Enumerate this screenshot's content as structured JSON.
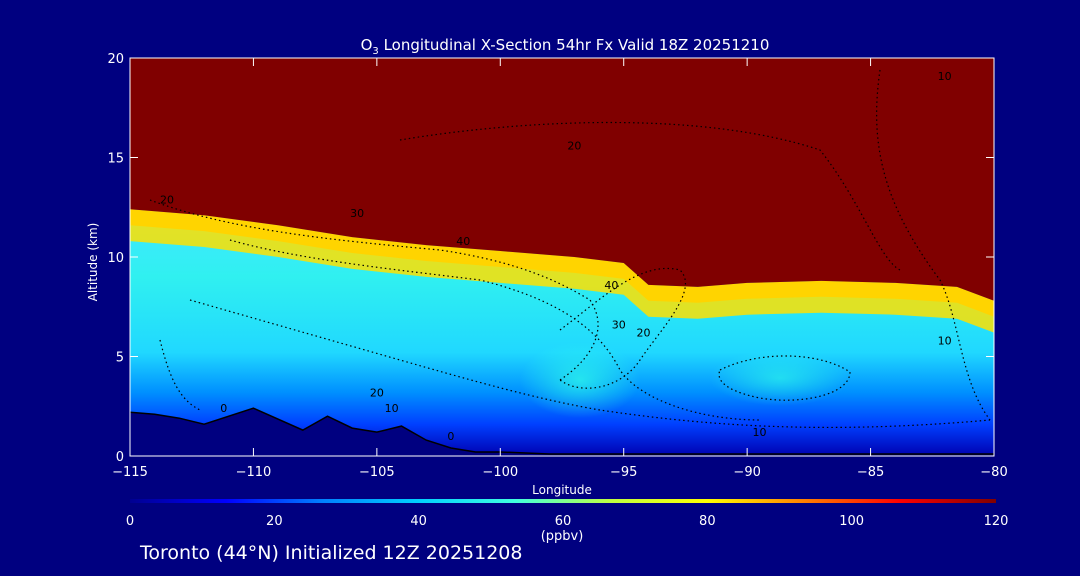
{
  "chart_data": {
    "type": "heatmap",
    "title_prefix": "O",
    "title_subscript": "3",
    "title_rest": " Longitudinal X-Section 54hr  Fx Valid 18Z 20251210",
    "xlabel": "Longitude",
    "ylabel": "Altitude (km)",
    "xlim": [
      -115,
      -80
    ],
    "ylim": [
      0,
      20
    ],
    "x_ticks": [
      -115,
      -110,
      -105,
      -100,
      -95,
      -90,
      -85,
      -80
    ],
    "x_tick_labels": [
      "−115",
      "−110",
      "−105",
      "−100",
      "−95",
      "−90",
      "−85",
      "−80"
    ],
    "y_ticks": [
      0,
      5,
      10,
      15,
      20
    ],
    "y_tick_labels": [
      "0",
      "5",
      "10",
      "15",
      "20"
    ],
    "colorbar": {
      "min": 0,
      "max": 120,
      "ticks": [
        0,
        20,
        40,
        60,
        80,
        100,
        120
      ],
      "tick_labels": [
        "0",
        "20",
        "40",
        "60",
        "80",
        "100",
        "120"
      ],
      "unit_label": "(ppbv)",
      "colors": [
        "#000090",
        "#0000ff",
        "#0080ff",
        "#00d0ff",
        "#40ffe0",
        "#c0ff40",
        "#ffff00",
        "#ff8000",
        "#ff0000",
        "#800000"
      ]
    },
    "stratosphere_boundary": {
      "lon": [
        -115,
        -112,
        -109,
        -106,
        -103,
        -100,
        -97,
        -95,
        -94,
        -92,
        -90,
        -87,
        -84,
        -81.5,
        -80
      ],
      "alt": [
        12.4,
        12.1,
        11.6,
        11.0,
        10.6,
        10.3,
        10.0,
        9.7,
        8.6,
        8.5,
        8.7,
        8.8,
        8.7,
        8.5,
        7.8
      ]
    },
    "terrain": {
      "lon": [
        -115,
        -114,
        -113,
        -112,
        -110,
        -108,
        -107,
        -106,
        -105,
        -104,
        -103,
        -102,
        -101,
        -100,
        -98,
        -95,
        -90,
        -85,
        -80
      ],
      "alt": [
        2.2,
        2.1,
        1.9,
        1.6,
        2.4,
        1.3,
        2.0,
        1.4,
        1.2,
        1.5,
        0.8,
        0.4,
        0.2,
        0.2,
        0.1,
        0.1,
        0.1,
        0.1,
        0.1
      ]
    },
    "contour_labels": [
      {
        "text": "20",
        "lon": -113.5,
        "alt": 12.7
      },
      {
        "text": "30",
        "lon": -105.8,
        "alt": 12.0
      },
      {
        "text": "40",
        "lon": -101.5,
        "alt": 10.6
      },
      {
        "text": "40",
        "lon": -95.5,
        "alt": 8.4
      },
      {
        "text": "30",
        "lon": -95.2,
        "alt": 6.4
      },
      {
        "text": "20",
        "lon": -94.2,
        "alt": 6.0
      },
      {
        "text": "20",
        "lon": -97.0,
        "alt": 15.4
      },
      {
        "text": "10",
        "lon": -82.0,
        "alt": 18.9
      },
      {
        "text": "10",
        "lon": -82.0,
        "alt": 5.6
      },
      {
        "text": "20",
        "lon": -105.0,
        "alt": 3.0
      },
      {
        "text": "10",
        "lon": -104.4,
        "alt": 2.2
      },
      {
        "text": "0",
        "lon": -111.2,
        "alt": 2.2
      },
      {
        "text": "0",
        "lon": -102.0,
        "alt": 0.8
      },
      {
        "text": "10",
        "lon": -89.5,
        "alt": 1.0
      }
    ]
  },
  "footer": "Toronto (44°N) Initialized 12Z 20251208"
}
